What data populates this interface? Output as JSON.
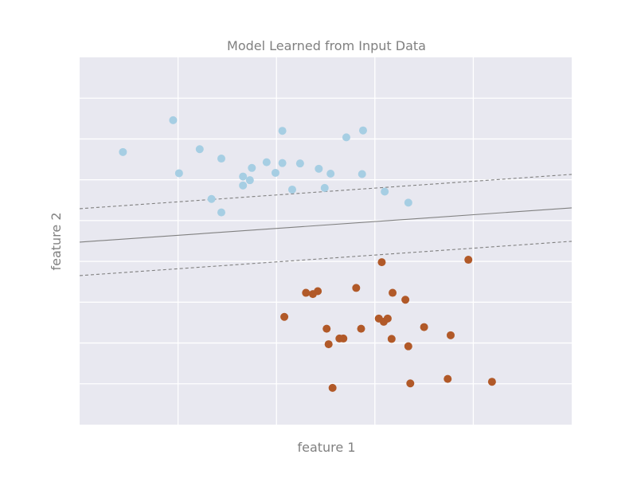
{
  "chart_data": {
    "type": "scatter",
    "title": "Model Learned from Input Data",
    "xlabel": "feature 1",
    "ylabel": "feature 2",
    "xlim": [
      -1.0,
      4.0
    ],
    "ylim": [
      -3.0,
      6.0
    ],
    "grid": true,
    "background": "#e8e8f0",
    "series": [
      {
        "color": "#a6cee3",
        "points": [
          [
            -0.56,
            3.68
          ],
          [
            -0.05,
            4.46
          ],
          [
            0.01,
            3.16
          ],
          [
            0.22,
            3.75
          ],
          [
            0.44,
            3.52
          ],
          [
            0.34,
            2.53
          ],
          [
            0.44,
            2.2
          ],
          [
            0.66,
            2.86
          ],
          [
            0.73,
            2.99
          ],
          [
            0.75,
            3.29
          ],
          [
            0.66,
            3.08
          ],
          [
            0.9,
            3.43
          ],
          [
            0.99,
            3.17
          ],
          [
            1.06,
            3.41
          ],
          [
            1.06,
            4.2
          ],
          [
            1.16,
            2.76
          ],
          [
            1.24,
            3.4
          ],
          [
            1.43,
            3.27
          ],
          [
            1.49,
            2.8
          ],
          [
            1.55,
            3.15
          ],
          [
            1.71,
            4.04
          ],
          [
            1.88,
            4.21
          ],
          [
            1.87,
            3.14
          ],
          [
            2.1,
            2.71
          ],
          [
            2.34,
            2.44
          ]
        ]
      },
      {
        "color": "#b15928",
        "points": [
          [
            1.08,
            -0.36
          ],
          [
            1.3,
            0.23
          ],
          [
            1.37,
            0.2
          ],
          [
            1.42,
            0.27
          ],
          [
            1.51,
            -0.65
          ],
          [
            1.53,
            -1.03
          ],
          [
            1.57,
            -2.1
          ],
          [
            1.64,
            -0.89
          ],
          [
            1.68,
            -0.89
          ],
          [
            1.81,
            0.35
          ],
          [
            1.86,
            -0.65
          ],
          [
            2.04,
            -0.4
          ],
          [
            2.07,
            0.98
          ],
          [
            2.09,
            -0.48
          ],
          [
            2.13,
            -0.4
          ],
          [
            2.17,
            -0.9
          ],
          [
            2.18,
            0.23
          ],
          [
            2.31,
            0.06
          ],
          [
            2.34,
            -1.08
          ],
          [
            2.36,
            -1.99
          ],
          [
            2.5,
            -0.61
          ],
          [
            2.74,
            -1.88
          ],
          [
            2.77,
            -0.81
          ],
          [
            2.95,
            1.04
          ],
          [
            3.19,
            -1.95
          ]
        ]
      }
    ],
    "lines": [
      {
        "style": "solid",
        "color": "#808080",
        "intercept": 1.64,
        "slope": 0.168
      },
      {
        "style": "dashed",
        "color": "#808080",
        "intercept": 2.46,
        "slope": 0.168
      },
      {
        "style": "dashed",
        "color": "#808080",
        "intercept": 0.82,
        "slope": 0.168
      }
    ]
  }
}
